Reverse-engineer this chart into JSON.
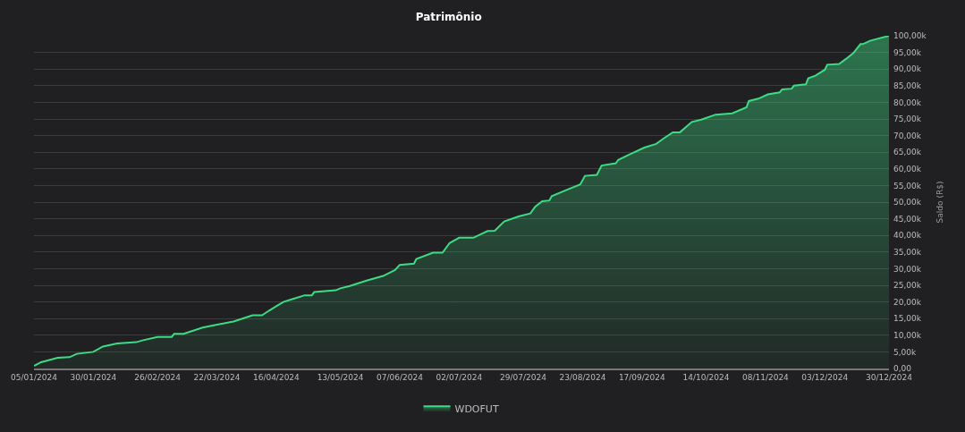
{
  "chart_data": {
    "type": "area",
    "title": "Patrimônio",
    "ylabel": "Saldo (R$)",
    "x": [
      "2024-01-05",
      "2024-01-08",
      "2024-01-15",
      "2024-01-20",
      "2024-01-23",
      "2024-01-30",
      "2024-02-03",
      "2024-02-09",
      "2024-02-17",
      "2024-02-20",
      "2024-02-26",
      "2024-03-03",
      "2024-03-04",
      "2024-03-08",
      "2024-03-16",
      "2024-03-22",
      "2024-03-29",
      "2024-04-06",
      "2024-04-10",
      "2024-04-13",
      "2024-04-16",
      "2024-04-19",
      "2024-04-23",
      "2024-04-28",
      "2024-05-01",
      "2024-05-02",
      "2024-05-11",
      "2024-05-13",
      "2024-05-17",
      "2024-05-24",
      "2024-05-31",
      "2024-06-05",
      "2024-06-07",
      "2024-06-13",
      "2024-06-14",
      "2024-06-21",
      "2024-06-25",
      "2024-06-28",
      "2024-07-02",
      "2024-07-08",
      "2024-07-14",
      "2024-07-17",
      "2024-07-21",
      "2024-07-27",
      "2024-08-01",
      "2024-08-03",
      "2024-08-06",
      "2024-08-09",
      "2024-08-10",
      "2024-08-16",
      "2024-08-22",
      "2024-08-24",
      "2024-08-29",
      "2024-08-31",
      "2024-09-06",
      "2024-09-07",
      "2024-09-11",
      "2024-09-18",
      "2024-09-23",
      "2024-09-26",
      "2024-09-30",
      "2024-10-03",
      "2024-10-08",
      "2024-10-12",
      "2024-10-18",
      "2024-10-25",
      "2024-10-31",
      "2024-11-01",
      "2024-11-05",
      "2024-11-09",
      "2024-11-14",
      "2024-11-15",
      "2024-11-19",
      "2024-11-20",
      "2024-11-25",
      "2024-11-26",
      "2024-11-29",
      "2024-12-03",
      "2024-12-04",
      "2024-12-09",
      "2024-12-12",
      "2024-12-15",
      "2024-12-18",
      "2024-12-19",
      "2024-12-22",
      "2024-12-30"
    ],
    "series": [
      {
        "name": "WDOFUT",
        "color": "#3ddc84",
        "values": [
          800,
          1900,
          3200,
          3400,
          4400,
          5000,
          6600,
          7500,
          7900,
          8500,
          9500,
          9500,
          10400,
          10400,
          12300,
          13200,
          14100,
          16000,
          16000,
          17400,
          18700,
          20000,
          20900,
          22000,
          22000,
          23000,
          23500,
          24100,
          24800,
          26400,
          27800,
          29600,
          31100,
          31500,
          32900,
          34800,
          34800,
          37700,
          39300,
          39300,
          41300,
          41400,
          44200,
          45700,
          46600,
          48600,
          50300,
          50500,
          51800,
          53600,
          55300,
          57900,
          58200,
          61000,
          61700,
          62700,
          64100,
          66400,
          67500,
          69100,
          71000,
          71000,
          74100,
          74800,
          76300,
          76700,
          78500,
          80400,
          81100,
          82400,
          83000,
          83900,
          84100,
          85000,
          85400,
          87200,
          88000,
          89800,
          91300,
          91500,
          93100,
          94800,
          97500,
          97500,
          98500,
          100000
        ]
      }
    ],
    "xlim": [
      "2024-01-05",
      "2024-12-30"
    ],
    "xticks": [
      {
        "value": "2024-01-05",
        "label": "05/01/2024"
      },
      {
        "value": "2024-01-30",
        "label": "30/01/2024"
      },
      {
        "value": "2024-02-26",
        "label": "26/02/2024"
      },
      {
        "value": "2024-03-22",
        "label": "22/03/2024"
      },
      {
        "value": "2024-04-16",
        "label": "16/04/2024"
      },
      {
        "value": "2024-05-13",
        "label": "13/05/2024"
      },
      {
        "value": "2024-06-07",
        "label": "07/06/2024"
      },
      {
        "value": "2024-07-02",
        "label": "02/07/2024"
      },
      {
        "value": "2024-07-29",
        "label": "29/07/2024"
      },
      {
        "value": "2024-08-23",
        "label": "23/08/2024"
      },
      {
        "value": "2024-09-17",
        "label": "17/09/2024"
      },
      {
        "value": "2024-10-14",
        "label": "14/10/2024"
      },
      {
        "value": "2024-11-08",
        "label": "08/11/2024"
      },
      {
        "value": "2024-12-03",
        "label": "03/12/2024"
      },
      {
        "value": "2024-12-30",
        "label": "30/12/2024"
      }
    ],
    "ylim": [
      0,
      100000
    ],
    "yticks": [
      {
        "value": 0,
        "label": "0,00"
      },
      {
        "value": 5000,
        "label": "5,00k"
      },
      {
        "value": 10000,
        "label": "10,00k"
      },
      {
        "value": 15000,
        "label": "15,00k"
      },
      {
        "value": 20000,
        "label": "20,00k"
      },
      {
        "value": 25000,
        "label": "25,00k"
      },
      {
        "value": 30000,
        "label": "30,00k"
      },
      {
        "value": 35000,
        "label": "35,00k"
      },
      {
        "value": 40000,
        "label": "40,00k"
      },
      {
        "value": 45000,
        "label": "45,00k"
      },
      {
        "value": 50000,
        "label": "50,00k"
      },
      {
        "value": 55000,
        "label": "55,00k"
      },
      {
        "value": 60000,
        "label": "60,00k"
      },
      {
        "value": 65000,
        "label": "65,00k"
      },
      {
        "value": 70000,
        "label": "70,00k"
      },
      {
        "value": 75000,
        "label": "75,00k"
      },
      {
        "value": 80000,
        "label": "80,00k"
      },
      {
        "value": 85000,
        "label": "85,00k"
      },
      {
        "value": 90000,
        "label": "90,00k"
      },
      {
        "value": 95000,
        "label": "95,00k"
      },
      {
        "value": 100000,
        "label": "100,00k"
      }
    ],
    "grid": "y",
    "legend": "bottom"
  }
}
